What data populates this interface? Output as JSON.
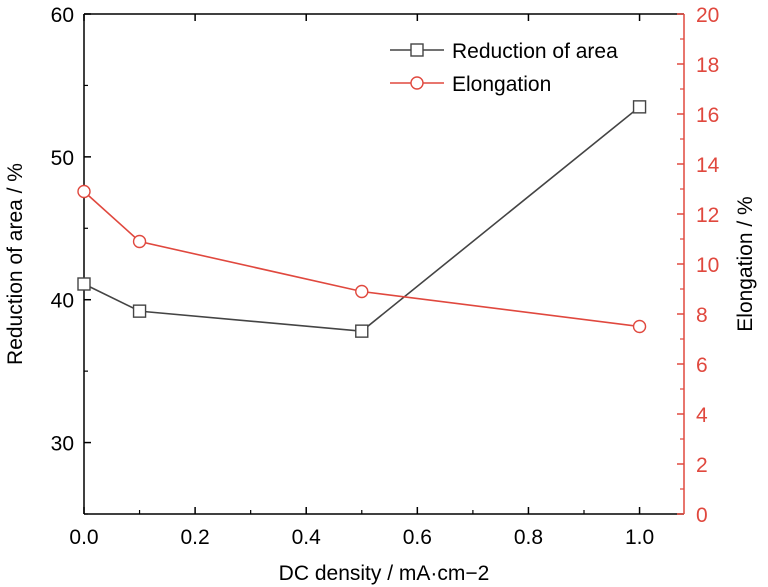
{
  "colors": {
    "left_axis": "#000000",
    "right_axis": "#e0483e",
    "series1": "#444444",
    "series2": "#e0483e"
  },
  "chart_data": {
    "type": "line",
    "xlabel": "DC density / mA·cm−2",
    "ylabel": "Reduction of area / %",
    "y2label": "Elongation / %",
    "xlim": [
      0.0,
      1.08
    ],
    "ylim": [
      25,
      60
    ],
    "y2lim": [
      0,
      20
    ],
    "xticks": [
      "0.0",
      "0.2",
      "0.4",
      "0.6",
      "0.8",
      "1.0"
    ],
    "yticks": [
      "30",
      "40",
      "50",
      "60"
    ],
    "y2ticks": [
      "0",
      "2",
      "4",
      "6",
      "8",
      "10",
      "12",
      "14",
      "16",
      "18",
      "20"
    ],
    "grid": false,
    "legend_position": "top-right",
    "series": [
      {
        "name": "Reduction of area",
        "axis": "left",
        "marker": "square",
        "x": [
          0.0,
          0.1,
          0.5,
          1.0
        ],
        "y": [
          41.1,
          39.2,
          37.8,
          53.5
        ]
      },
      {
        "name": "Elongation",
        "axis": "right",
        "marker": "circle",
        "x": [
          0.0,
          0.1,
          0.5,
          1.0
        ],
        "y": [
          12.9,
          10.9,
          8.9,
          7.5
        ]
      }
    ]
  }
}
